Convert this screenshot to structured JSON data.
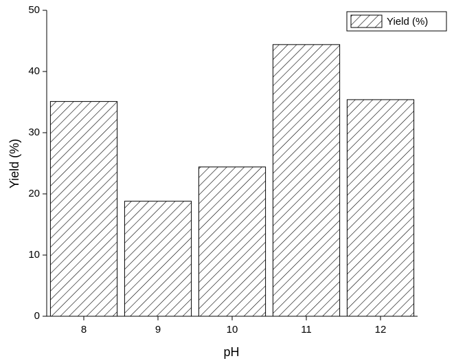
{
  "chart_data": {
    "type": "bar",
    "categories": [
      "8",
      "9",
      "10",
      "11",
      "12"
    ],
    "series": [
      {
        "name": "Yield (%)",
        "color": "#000000",
        "values": [
          35.1,
          18.8,
          24.4,
          44.4,
          35.4
        ]
      }
    ],
    "xlabel": "pH",
    "ylabel": "Yield (%)",
    "ylim": [
      0,
      50
    ],
    "yticks": [
      0,
      10,
      20,
      30,
      40,
      50
    ],
    "hatch": true,
    "legend": "upper right"
  }
}
